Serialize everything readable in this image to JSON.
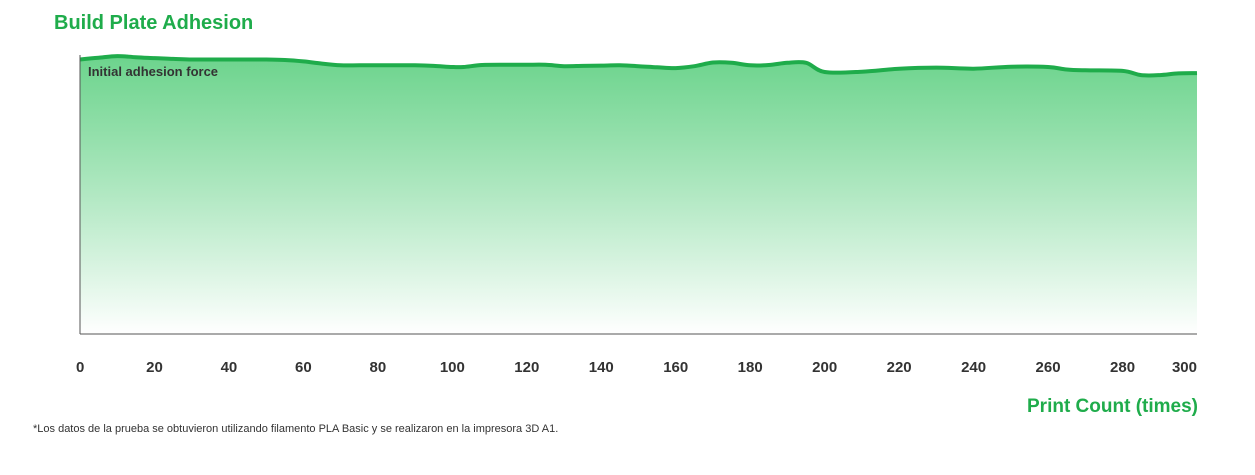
{
  "colors": {
    "accent": "#1fac4b",
    "fill_top": "#5ccf80",
    "axis": "#555555"
  },
  "chart_data": {
    "type": "area",
    "title": "Build Plate Adhesion",
    "xlabel": "Print Count (times)",
    "ylabel": "Initial adhesion force",
    "footnote": "*Los datos de la prueba se obtuvieron utilizando filamento PLA Basic y se realizaron en la impresora 3D A1.",
    "xlim": [
      0,
      300
    ],
    "ylim": [
      0,
      1
    ],
    "xticks": [
      0,
      20,
      40,
      60,
      80,
      100,
      120,
      140,
      160,
      180,
      200,
      220,
      240,
      260,
      280,
      300
    ],
    "xtick_labels": [
      "0",
      "20",
      "40",
      "60",
      "80",
      "100",
      "120",
      "140",
      "160",
      "180",
      "200",
      "220",
      "240",
      "260",
      "280",
      "300"
    ],
    "x": [
      0,
      5,
      10,
      15,
      20,
      25,
      30,
      35,
      40,
      45,
      50,
      55,
      60,
      65,
      70,
      75,
      80,
      85,
      90,
      95,
      100,
      103,
      108,
      115,
      120,
      125,
      130,
      135,
      140,
      145,
      150,
      155,
      160,
      165,
      170,
      175,
      180,
      185,
      190,
      195,
      200,
      210,
      220,
      230,
      240,
      250,
      260,
      265,
      270,
      280,
      285,
      290,
      295,
      300
    ],
    "series": [
      {
        "values": [
          0.984,
          0.99,
          0.996,
          0.992,
          0.989,
          0.986,
          0.984,
          0.984,
          0.984,
          0.984,
          0.984,
          0.982,
          0.977,
          0.969,
          0.963,
          0.963,
          0.963,
          0.963,
          0.963,
          0.961,
          0.957,
          0.957,
          0.964,
          0.965,
          0.965,
          0.965,
          0.96,
          0.961,
          0.962,
          0.963,
          0.96,
          0.956,
          0.953,
          0.96,
          0.973,
          0.972,
          0.963,
          0.964,
          0.972,
          0.972,
          0.939,
          0.94,
          0.951,
          0.955,
          0.951,
          0.958,
          0.957,
          0.948,
          0.945,
          0.943,
          0.928,
          0.928,
          0.934,
          0.935
        ]
      }
    ],
    "grid": false,
    "legend": "none"
  }
}
